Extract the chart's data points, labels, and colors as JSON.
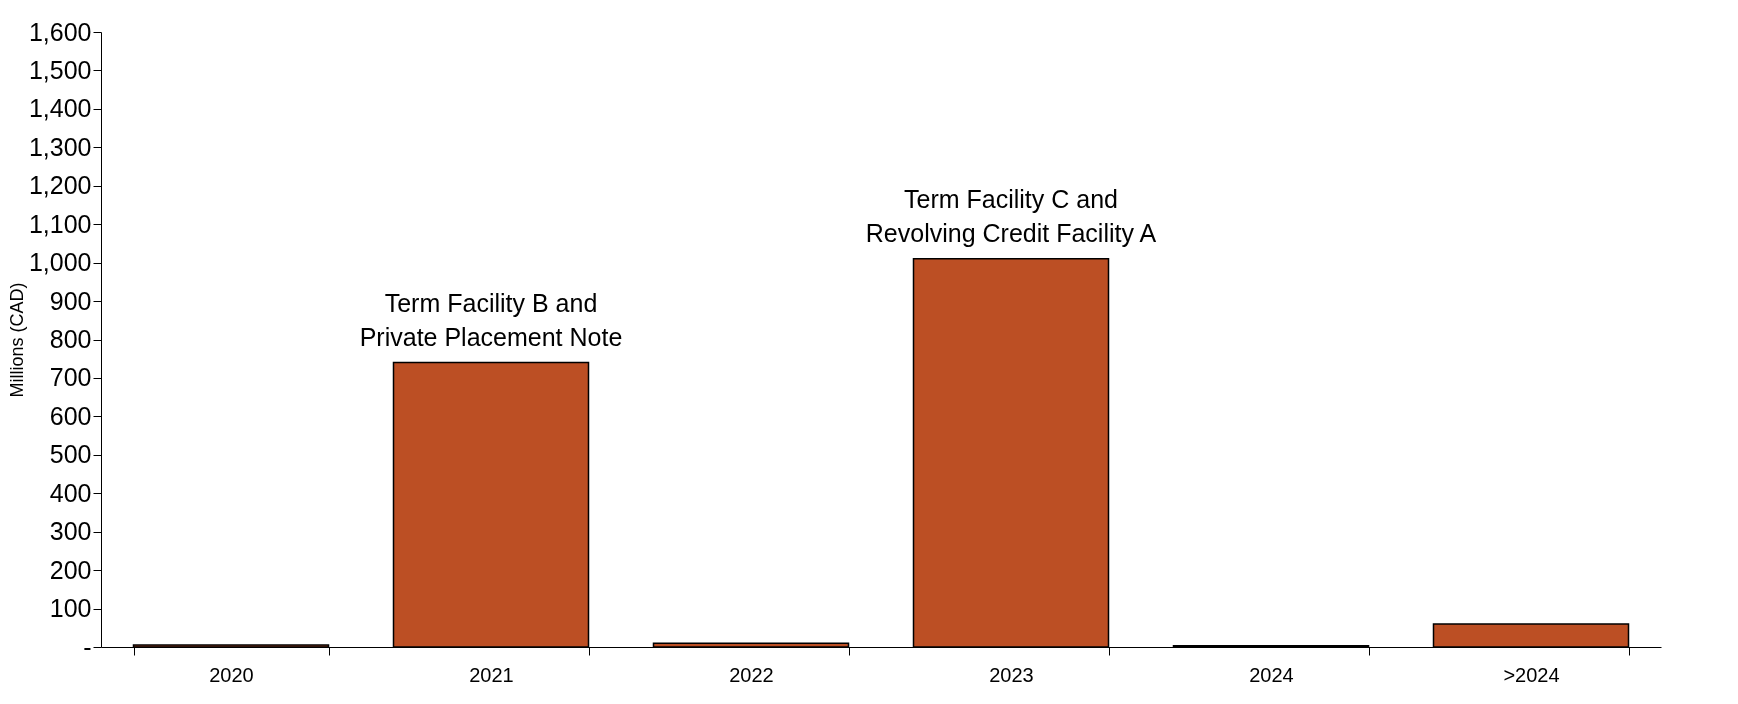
{
  "chart_data": {
    "type": "bar",
    "ylabel": "Millions (CAD)",
    "categories": [
      "2020",
      "2021",
      "2022",
      "2023",
      "2024",
      ">2024"
    ],
    "values": [
      5,
      740,
      10,
      1010,
      3,
      60
    ],
    "color": "#bc4f24",
    "ylim": [
      0,
      1600
    ],
    "yticks": [
      {
        "value": 0,
        "label": "-"
      },
      100,
      200,
      300,
      400,
      500,
      600,
      700,
      800,
      900,
      {
        "value": 1000,
        "label": "1,000"
      },
      {
        "value": 1100,
        "label": "1,100"
      },
      {
        "value": 1200,
        "label": "1,200"
      },
      {
        "value": 1300,
        "label": "1,300"
      },
      {
        "value": 1400,
        "label": "1,400"
      },
      {
        "value": 1500,
        "label": "1,500"
      },
      {
        "value": 1600,
        "label": "1,600"
      }
    ],
    "grid": false,
    "annotations": [
      {
        "text": "Term Facility B and\nPrivate Placement Note",
        "x": "2021",
        "y": 740
      },
      {
        "text": "Term Facility C and\nRevolving  Credit Facility A",
        "x": "2023",
        "y": 1010
      }
    ]
  }
}
